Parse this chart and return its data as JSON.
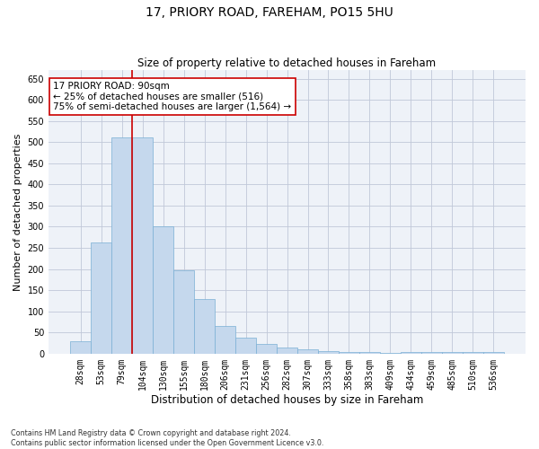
{
  "title": "17, PRIORY ROAD, FAREHAM, PO15 5HU",
  "subtitle": "Size of property relative to detached houses in Fareham",
  "xlabel": "Distribution of detached houses by size in Fareham",
  "ylabel": "Number of detached properties",
  "footnote": "Contains HM Land Registry data © Crown copyright and database right 2024.\nContains public sector information licensed under the Open Government Licence v3.0.",
  "categories": [
    "28sqm",
    "53sqm",
    "79sqm",
    "104sqm",
    "130sqm",
    "155sqm",
    "180sqm",
    "206sqm",
    "231sqm",
    "256sqm",
    "282sqm",
    "307sqm",
    "333sqm",
    "358sqm",
    "383sqm",
    "409sqm",
    "434sqm",
    "459sqm",
    "485sqm",
    "510sqm",
    "536sqm"
  ],
  "values": [
    30,
    263,
    512,
    512,
    302,
    197,
    130,
    65,
    38,
    22,
    15,
    10,
    6,
    4,
    4,
    1,
    4,
    4,
    4,
    4,
    4
  ],
  "bar_color": "#c5d8ed",
  "bar_edge_color": "#7aafd4",
  "bar_width": 1.0,
  "red_line_x": 2.5,
  "annotation_text": "17 PRIORY ROAD: 90sqm\n← 25% of detached houses are smaller (516)\n75% of semi-detached houses are larger (1,564) →",
  "annotation_box_color": "#ffffff",
  "annotation_box_edge": "#cc0000",
  "annotation_text_color": "#000000",
  "red_line_color": "#cc0000",
  "ylim": [
    0,
    670
  ],
  "yticks": [
    0,
    50,
    100,
    150,
    200,
    250,
    300,
    350,
    400,
    450,
    500,
    550,
    600,
    650
  ],
  "grid_color": "#c0c8d8",
  "background_color": "#eef2f8",
  "title_fontsize": 10,
  "subtitle_fontsize": 8.5,
  "tick_fontsize": 7,
  "xlabel_fontsize": 8.5,
  "ylabel_fontsize": 8,
  "annotation_fontsize": 7.5,
  "footnote_fontsize": 5.8
}
